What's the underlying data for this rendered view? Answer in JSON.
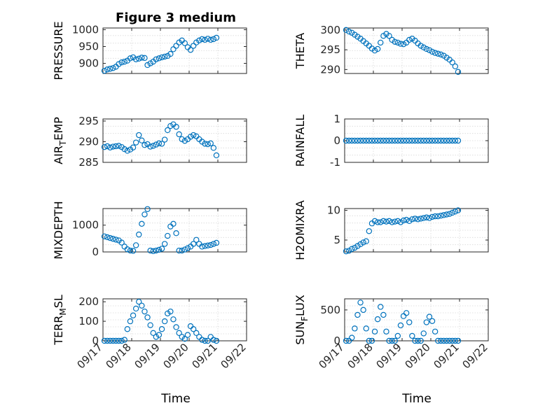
{
  "figure": {
    "title": "Figure 3 medium",
    "x_label": "Time",
    "x_tick_labels": [
      "09/17",
      "09/18",
      "09/19",
      "09/20",
      "09/21",
      "09/22"
    ],
    "marker_color": "#0072BD"
  },
  "chart_data": [
    {
      "type": "scatter",
      "ylabel": "PRESSURE",
      "ylim": [
        870,
        1005
      ],
      "yticks": [
        900,
        950,
        1000
      ],
      "xlim": [
        0,
        5
      ],
      "x": [
        0.05,
        0.15,
        0.25,
        0.35,
        0.45,
        0.55,
        0.65,
        0.75,
        0.85,
        0.95,
        1.05,
        1.15,
        1.25,
        1.35,
        1.45,
        1.55,
        1.65,
        1.75,
        1.85,
        1.95,
        2.05,
        2.15,
        2.25,
        2.35,
        2.45,
        2.55,
        2.65,
        2.75,
        2.85,
        2.95,
        3.05,
        3.15,
        3.25,
        3.35,
        3.45,
        3.55,
        3.65,
        3.75,
        3.85,
        3.95
      ],
      "values": [
        878,
        882,
        884,
        886,
        890,
        898,
        903,
        905,
        908,
        915,
        918,
        912,
        914,
        917,
        916,
        895,
        900,
        905,
        912,
        915,
        918,
        920,
        922,
        928,
        942,
        952,
        962,
        968,
        960,
        948,
        940,
        952,
        962,
        968,
        972,
        970,
        973,
        970,
        972,
        976
      ]
    },
    {
      "type": "scatter",
      "ylabel": "THETA",
      "ylim": [
        289,
        300.5
      ],
      "yticks": [
        290,
        295,
        300
      ],
      "xlim": [
        0,
        5
      ],
      "x": [
        0.05,
        0.15,
        0.25,
        0.35,
        0.45,
        0.55,
        0.65,
        0.75,
        0.85,
        0.95,
        1.05,
        1.15,
        1.25,
        1.35,
        1.45,
        1.55,
        1.65,
        1.75,
        1.85,
        1.95,
        2.05,
        2.15,
        2.25,
        2.35,
        2.45,
        2.55,
        2.65,
        2.75,
        2.85,
        2.95,
        3.05,
        3.15,
        3.25,
        3.35,
        3.45,
        3.55,
        3.65,
        3.75,
        3.85,
        3.95
      ],
      "values": [
        300,
        299.6,
        299.3,
        298.8,
        298.3,
        297.8,
        297.2,
        296.6,
        296,
        295.3,
        294.8,
        295.2,
        296.8,
        298.5,
        299,
        298.5,
        297.5,
        297,
        296.8,
        296.5,
        296.4,
        296.8,
        297.5,
        297.8,
        297.3,
        296.6,
        296,
        295.6,
        295.2,
        294.9,
        294.5,
        294.2,
        294,
        293.8,
        293.5,
        293,
        292.5,
        291.8,
        290.8,
        289.4
      ]
    },
    {
      "type": "scatter",
      "ylabel": "AIR_TEMP",
      "ylim": [
        285,
        295.5
      ],
      "yticks": [
        285,
        290,
        295
      ],
      "xlim": [
        0,
        5
      ],
      "x": [
        0.05,
        0.15,
        0.25,
        0.35,
        0.45,
        0.55,
        0.65,
        0.75,
        0.85,
        0.95,
        1.05,
        1.15,
        1.25,
        1.35,
        1.45,
        1.55,
        1.65,
        1.75,
        1.85,
        1.95,
        2.05,
        2.15,
        2.25,
        2.35,
        2.45,
        2.55,
        2.65,
        2.75,
        2.85,
        2.95,
        3.05,
        3.15,
        3.25,
        3.35,
        3.45,
        3.55,
        3.65,
        3.75,
        3.85,
        3.95
      ],
      "values": [
        288.7,
        288.9,
        288.6,
        288.8,
        288.9,
        289,
        288.7,
        288.2,
        287.8,
        288.1,
        288.6,
        289.8,
        291.6,
        290.3,
        289.2,
        289.4,
        288.8,
        289,
        289.3,
        289.6,
        289.5,
        290.5,
        292.8,
        293.8,
        294.2,
        293.6,
        291.8,
        290.6,
        290.2,
        290.6,
        291.2,
        291.6,
        291.3,
        290.6,
        290,
        289.5,
        289.4,
        289.6,
        288.5,
        286.7
      ]
    },
    {
      "type": "scatter",
      "ylabel": "RAINFALL",
      "ylim": [
        -1,
        1
      ],
      "yticks": [
        -1,
        0,
        1
      ],
      "xlim": [
        0,
        5
      ],
      "x": [
        0.05,
        0.15,
        0.25,
        0.35,
        0.45,
        0.55,
        0.65,
        0.75,
        0.85,
        0.95,
        1.05,
        1.15,
        1.25,
        1.35,
        1.45,
        1.55,
        1.65,
        1.75,
        1.85,
        1.95,
        2.05,
        2.15,
        2.25,
        2.35,
        2.45,
        2.55,
        2.65,
        2.75,
        2.85,
        2.95,
        3.05,
        3.15,
        3.25,
        3.35,
        3.45,
        3.55,
        3.65,
        3.75,
        3.85,
        3.95
      ],
      "values": [
        0,
        0,
        0,
        0,
        0,
        0,
        0,
        0,
        0,
        0,
        0,
        0,
        0,
        0,
        0,
        0,
        0,
        0,
        0,
        0,
        0,
        0,
        0,
        0,
        0,
        0,
        0,
        0,
        0,
        0,
        0,
        0,
        0,
        0,
        0,
        0,
        0,
        0,
        0,
        0
      ]
    },
    {
      "type": "scatter",
      "ylabel": "MIXDEPTH",
      "ylim": [
        0,
        1620
      ],
      "yticks": [
        0,
        1000
      ],
      "xlim": [
        0,
        5
      ],
      "x": [
        0.05,
        0.15,
        0.25,
        0.35,
        0.45,
        0.55,
        0.65,
        0.75,
        0.85,
        0.95,
        1.05,
        1.15,
        1.25,
        1.35,
        1.45,
        1.55,
        1.65,
        1.75,
        1.85,
        1.95,
        2.05,
        2.15,
        2.25,
        2.35,
        2.45,
        2.55,
        2.65,
        2.75,
        2.85,
        2.95,
        3.05,
        3.15,
        3.25,
        3.35,
        3.45,
        3.55,
        3.65,
        3.75,
        3.85,
        3.95
      ],
      "values": [
        580,
        550,
        520,
        490,
        460,
        430,
        350,
        200,
        100,
        50,
        40,
        250,
        650,
        1050,
        1400,
        1600,
        50,
        30,
        50,
        80,
        120,
        300,
        600,
        950,
        1050,
        700,
        50,
        50,
        90,
        140,
        200,
        300,
        450,
        300,
        200,
        220,
        240,
        260,
        300,
        340
      ]
    },
    {
      "type": "scatter",
      "ylabel": "H2OMIXRA",
      "ylim": [
        3,
        10.3
      ],
      "yticks": [
        5,
        10
      ],
      "xlim": [
        0,
        5
      ],
      "x": [
        0.05,
        0.15,
        0.25,
        0.35,
        0.45,
        0.55,
        0.65,
        0.75,
        0.85,
        0.95,
        1.05,
        1.15,
        1.25,
        1.35,
        1.45,
        1.55,
        1.65,
        1.75,
        1.85,
        1.95,
        2.05,
        2.15,
        2.25,
        2.35,
        2.45,
        2.55,
        2.65,
        2.75,
        2.85,
        2.95,
        3.05,
        3.15,
        3.25,
        3.35,
        3.45,
        3.55,
        3.65,
        3.75,
        3.85,
        3.95
      ],
      "values": [
        3.1,
        3.2,
        3.5,
        3.7,
        4,
        4.3,
        4.6,
        4.8,
        6.5,
        7.8,
        8.2,
        8,
        8,
        8.2,
        8.1,
        8.2,
        8,
        8.1,
        8.2,
        8,
        8.3,
        8.4,
        8.2,
        8.5,
        8.6,
        8.5,
        8.6,
        8.7,
        8.8,
        8.7,
        8.9,
        9,
        9,
        9.1,
        9.2,
        9.3,
        9.4,
        9.6,
        9.8,
        10
      ]
    },
    {
      "type": "scatter",
      "ylabel": "TERR_MSL",
      "ylim": [
        0,
        215
      ],
      "yticks": [
        0,
        100,
        200
      ],
      "xlim": [
        0,
        5
      ],
      "x": [
        0.05,
        0.15,
        0.25,
        0.35,
        0.45,
        0.55,
        0.65,
        0.75,
        0.85,
        0.95,
        1.05,
        1.15,
        1.25,
        1.35,
        1.45,
        1.55,
        1.65,
        1.75,
        1.85,
        1.95,
        2.05,
        2.15,
        2.25,
        2.35,
        2.45,
        2.55,
        2.65,
        2.75,
        2.85,
        2.95,
        3.05,
        3.15,
        3.25,
        3.35,
        3.45,
        3.55,
        3.65,
        3.75,
        3.85,
        3.95
      ],
      "values": [
        0,
        0,
        0,
        0,
        0,
        0,
        0,
        5,
        60,
        100,
        130,
        165,
        200,
        180,
        150,
        120,
        80,
        40,
        20,
        30,
        60,
        100,
        140,
        150,
        110,
        70,
        40,
        20,
        10,
        30,
        75,
        60,
        40,
        20,
        5,
        0,
        0,
        20,
        5,
        0
      ]
    },
    {
      "type": "scatter",
      "ylabel": "SUN_FLUX",
      "ylim": [
        0,
        680
      ],
      "yticks": [
        0,
        500
      ],
      "xlim": [
        0,
        5
      ],
      "x": [
        0.05,
        0.15,
        0.25,
        0.35,
        0.45,
        0.55,
        0.65,
        0.75,
        0.85,
        0.95,
        1.05,
        1.15,
        1.25,
        1.35,
        1.45,
        1.55,
        1.65,
        1.75,
        1.85,
        1.95,
        2.05,
        2.15,
        2.25,
        2.35,
        2.45,
        2.55,
        2.65,
        2.75,
        2.85,
        2.95,
        3.05,
        3.15,
        3.25,
        3.35,
        3.45,
        3.55,
        3.65,
        3.75,
        3.85,
        3.95
      ],
      "values": [
        0,
        0,
        50,
        200,
        420,
        620,
        500,
        200,
        0,
        0,
        150,
        350,
        550,
        420,
        150,
        0,
        0,
        0,
        80,
        250,
        400,
        450,
        300,
        80,
        0,
        0,
        0,
        120,
        300,
        390,
        320,
        150,
        0,
        0,
        0,
        0,
        0,
        0,
        0,
        0
      ]
    }
  ]
}
